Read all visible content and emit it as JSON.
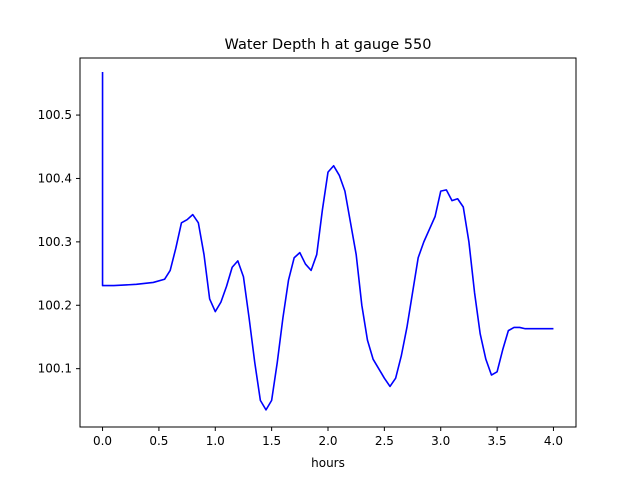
{
  "chart_data": {
    "type": "line",
    "title": "Water Depth h at gauge 550",
    "xlabel": "hours",
    "ylabel": "",
    "xlim": [
      -0.2,
      4.2
    ],
    "ylim": [
      100.008,
      100.59
    ],
    "xticks": [
      0.0,
      0.5,
      1.0,
      1.5,
      2.0,
      2.5,
      3.0,
      3.5,
      4.0
    ],
    "xtick_labels": [
      "0.0",
      "0.5",
      "1.0",
      "1.5",
      "2.0",
      "2.5",
      "3.0",
      "3.5",
      "4.0"
    ],
    "yticks": [
      100.1,
      100.2,
      100.3,
      100.4,
      100.5
    ],
    "ytick_labels": [
      "100.1",
      "100.2",
      "100.3",
      "100.4",
      "100.5"
    ],
    "grid": false,
    "series": [
      {
        "color": "#0000ff",
        "x": [
          0.0,
          0.0,
          0.0,
          0.1,
          0.3,
          0.45,
          0.55,
          0.6,
          0.65,
          0.7,
          0.75,
          0.8,
          0.85,
          0.9,
          0.95,
          1.0,
          1.05,
          1.1,
          1.15,
          1.2,
          1.25,
          1.3,
          1.35,
          1.4,
          1.45,
          1.5,
          1.55,
          1.6,
          1.65,
          1.7,
          1.75,
          1.8,
          1.85,
          1.9,
          1.95,
          2.0,
          2.05,
          2.1,
          2.15,
          2.2,
          2.25,
          2.3,
          2.35,
          2.4,
          2.45,
          2.5,
          2.55,
          2.6,
          2.65,
          2.7,
          2.75,
          2.8,
          2.85,
          2.9,
          2.95,
          3.0,
          3.05,
          3.1,
          3.15,
          3.2,
          3.25,
          3.3,
          3.35,
          3.4,
          3.45,
          3.5,
          3.55,
          3.6,
          3.65,
          3.7,
          3.75,
          3.8,
          3.85,
          3.9,
          3.95,
          4.0
        ],
        "y": [
          100.568,
          100.231,
          100.231,
          100.231,
          100.233,
          100.236,
          100.241,
          100.255,
          100.29,
          100.33,
          100.335,
          100.343,
          100.33,
          100.28,
          100.21,
          100.19,
          100.205,
          100.23,
          100.26,
          100.27,
          100.245,
          100.18,
          100.11,
          100.05,
          100.035,
          100.05,
          100.11,
          100.18,
          100.24,
          100.275,
          100.283,
          100.265,
          100.255,
          100.28,
          100.35,
          100.41,
          100.42,
          100.405,
          100.38,
          100.33,
          100.28,
          100.2,
          100.145,
          100.115,
          100.1,
          100.085,
          100.072,
          100.085,
          100.12,
          100.165,
          100.22,
          100.275,
          100.3,
          100.32,
          100.34,
          100.38,
          100.382,
          100.365,
          100.368,
          100.355,
          100.3,
          100.22,
          100.155,
          100.115,
          100.09,
          100.095,
          100.13,
          100.16,
          100.165,
          100.165,
          100.163,
          100.163,
          100.163,
          100.163,
          100.163,
          100.163
        ]
      }
    ]
  }
}
